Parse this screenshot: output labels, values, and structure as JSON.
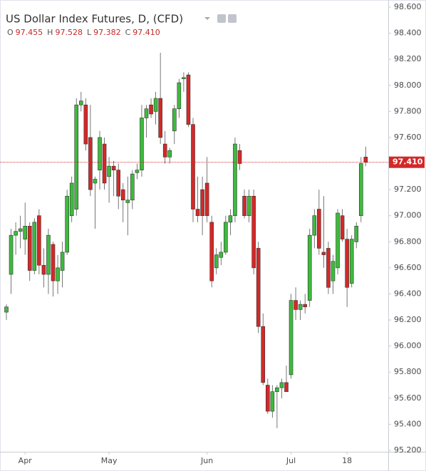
{
  "chart_data": {
    "type": "candlestick",
    "title": "US Dollar Index Futures, D, (CFD)",
    "ohlc_legend": [
      [
        "O",
        "97.455"
      ],
      [
        "H",
        "97.528"
      ],
      [
        "L",
        "97.382"
      ],
      [
        "C",
        "97.410"
      ]
    ],
    "up_color": "#3dbb3d",
    "down_color": "#d42828",
    "open": [
      96.26,
      96.55,
      96.85,
      96.88,
      96.82,
      96.92,
      96.58,
      97.0,
      96.62,
      96.55,
      96.78,
      96.5,
      96.58,
      96.72,
      97.0,
      97.05,
      97.85,
      97.85,
      97.6,
      97.25,
      97.35,
      97.55,
      97.3,
      97.38,
      97.35,
      97.2,
      97.1,
      97.12,
      97.33,
      97.35,
      97.75,
      97.85,
      97.8,
      97.9,
      97.55,
      97.45,
      97.65,
      97.82,
      98.05,
      98.08,
      97.7,
      97.05,
      97.2,
      97.25,
      96.95,
      96.6,
      96.68,
      96.72,
      96.95,
      97.0,
      97.5,
      97.15,
      97.0,
      97.15,
      96.75,
      96.15,
      95.7,
      95.5,
      95.65,
      95.68,
      95.72,
      95.78,
      96.35,
      96.28,
      96.32,
      96.35,
      96.85,
      97.05,
      96.72,
      96.75,
      96.5,
      96.6,
      97.0,
      96.82,
      96.48,
      96.8,
      97.0,
      97.45
    ],
    "high": [
      96.32,
      96.9,
      96.95,
      97.0,
      97.1,
      96.95,
      96.98,
      97.05,
      96.75,
      96.9,
      96.8,
      96.7,
      96.8,
      97.2,
      97.3,
      97.9,
      97.95,
      97.9,
      97.85,
      97.3,
      97.65,
      97.6,
      97.45,
      97.42,
      97.4,
      97.25,
      97.3,
      97.35,
      97.4,
      97.85,
      97.85,
      97.9,
      97.95,
      98.25,
      97.65,
      97.52,
      97.85,
      98.05,
      98.1,
      98.1,
      97.75,
      97.3,
      97.3,
      97.45,
      97.0,
      96.75,
      96.8,
      97.0,
      97.05,
      97.6,
      97.55,
      97.2,
      97.2,
      97.2,
      96.8,
      96.25,
      95.75,
      95.7,
      95.7,
      95.75,
      95.85,
      96.4,
      96.45,
      96.35,
      96.4,
      96.9,
      97.05,
      97.2,
      97.15,
      96.8,
      96.7,
      97.05,
      97.05,
      96.9,
      96.85,
      96.95,
      97.45,
      97.53
    ],
    "low": [
      96.2,
      96.4,
      96.7,
      96.75,
      96.7,
      96.5,
      96.55,
      96.55,
      96.45,
      96.4,
      96.38,
      96.4,
      96.45,
      96.7,
      96.95,
      97.0,
      97.8,
      97.5,
      97.15,
      96.9,
      97.2,
      97.2,
      97.1,
      97.15,
      97.05,
      96.95,
      96.85,
      97.05,
      97.28,
      97.3,
      97.6,
      97.75,
      97.7,
      97.55,
      97.4,
      97.4,
      97.55,
      97.75,
      97.95,
      97.68,
      96.95,
      96.95,
      96.85,
      96.95,
      96.45,
      96.55,
      96.62,
      96.7,
      96.85,
      96.95,
      97.35,
      96.98,
      96.95,
      96.55,
      96.1,
      95.7,
      95.48,
      95.45,
      95.37,
      95.6,
      95.65,
      95.75,
      96.2,
      96.2,
      96.25,
      96.3,
      96.75,
      96.7,
      96.6,
      96.4,
      96.4,
      96.55,
      96.8,
      96.3,
      96.45,
      96.75,
      96.95,
      97.38
    ],
    "close": [
      96.3,
      96.85,
      96.88,
      96.9,
      96.92,
      96.58,
      96.95,
      96.62,
      96.55,
      96.85,
      96.5,
      96.6,
      96.72,
      97.15,
      97.25,
      97.85,
      97.88,
      97.55,
      97.2,
      97.28,
      97.6,
      97.25,
      97.38,
      97.35,
      97.15,
      97.12,
      97.12,
      97.32,
      97.35,
      97.75,
      97.82,
      97.78,
      97.9,
      97.6,
      97.45,
      97.5,
      97.82,
      98.02,
      98.06,
      97.7,
      97.05,
      97.0,
      97.0,
      97.0,
      96.5,
      96.7,
      96.72,
      96.95,
      97.0,
      97.55,
      97.4,
      97.0,
      97.15,
      96.6,
      96.15,
      95.72,
      95.5,
      95.65,
      95.68,
      95.72,
      95.65,
      96.35,
      96.28,
      96.32,
      96.3,
      96.85,
      97.0,
      96.75,
      96.7,
      96.45,
      96.65,
      97.02,
      96.82,
      96.45,
      96.82,
      96.92,
      97.4,
      97.41
    ],
    "ylim": [
      95.2,
      98.6
    ],
    "yticks": [
      {
        "value": 95.2,
        "label": "95.200"
      },
      {
        "value": 95.4,
        "label": "95.400"
      },
      {
        "value": 95.6,
        "label": "95.600"
      },
      {
        "value": 95.8,
        "label": "95.800"
      },
      {
        "value": 96.0,
        "label": "96.000"
      },
      {
        "value": 96.2,
        "label": "96.200"
      },
      {
        "value": 96.4,
        "label": "96.400"
      },
      {
        "value": 96.6,
        "label": "96.600"
      },
      {
        "value": 96.8,
        "label": "96.800"
      },
      {
        "value": 97.0,
        "label": "97.000"
      },
      {
        "value": 97.2,
        "label": "97.200"
      },
      {
        "value": 97.4,
        "label": "97.400"
      },
      {
        "value": 97.6,
        "label": "97.600"
      },
      {
        "value": 97.8,
        "label": "97.800"
      },
      {
        "value": 98.0,
        "label": "98.000"
      },
      {
        "value": 98.2,
        "label": "98.200"
      },
      {
        "value": 98.4,
        "label": "98.400"
      },
      {
        "value": 98.6,
        "label": "98.600"
      }
    ],
    "xticks": [
      {
        "value": 4,
        "label": "Apr"
      },
      {
        "value": 22,
        "label": "May"
      },
      {
        "value": 43,
        "label": "Jun"
      },
      {
        "value": 61,
        "label": "Jul"
      },
      {
        "value": 73,
        "label": "18"
      }
    ],
    "last_price": {
      "value": 97.41,
      "label": "97.410"
    },
    "grid": true
  }
}
